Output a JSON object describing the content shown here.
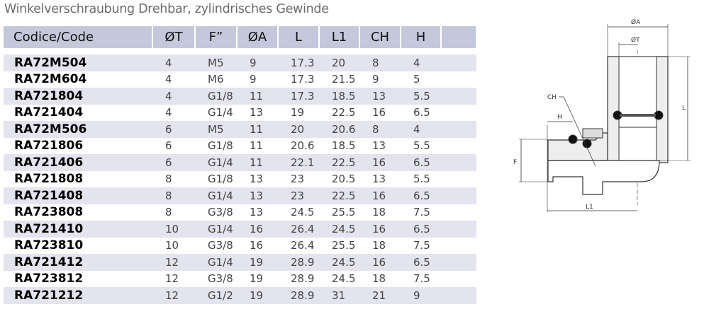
{
  "subtitle": "Winkelverschraubung Drehbar, zylindrisches Gewinde",
  "table": {
    "headers": [
      "Codice/Code",
      "ØT",
      "F”",
      "ØA",
      "L",
      "L1",
      "CH",
      "H"
    ],
    "rows": [
      [
        "RA72M504",
        "4",
        "M5",
        "9",
        "17.3",
        "20",
        "8",
        "4"
      ],
      [
        "RA72M604",
        "4",
        "M6",
        "9",
        "17.3",
        "21.5",
        "9",
        "5"
      ],
      [
        "RA721804",
        "4",
        "G1/8",
        "11",
        "17.3",
        "18.5",
        "13",
        "5.5"
      ],
      [
        "RA721404",
        "4",
        "G1/4",
        "13",
        "19",
        "22.5",
        "16",
        "6.5"
      ],
      [
        "RA72M506",
        "6",
        "M5",
        "11",
        "20",
        "20.6",
        "8",
        "4"
      ],
      [
        "RA721806",
        "6",
        "G1/8",
        "11",
        "20.6",
        "18.5",
        "13",
        "5.5"
      ],
      [
        "RA721406",
        "6",
        "G1/4",
        "11",
        "22.1",
        "22.5",
        "16",
        "6.5"
      ],
      [
        "RA721808",
        "8",
        "G1/8",
        "13",
        "23",
        "20.5",
        "13",
        "5.5"
      ],
      [
        "RA721408",
        "8",
        "G1/4",
        "13",
        "23",
        "22.5",
        "16",
        "6.5"
      ],
      [
        "RA723808",
        "8",
        "G3/8",
        "13",
        "24.5",
        "25.5",
        "18",
        "7.5"
      ],
      [
        "RA721410",
        "10",
        "G1/4",
        "16",
        "26.4",
        "24.5",
        "16",
        "6.5"
      ],
      [
        "RA723810",
        "10",
        "G3/8",
        "16",
        "26.4",
        "25.5",
        "18",
        "7.5"
      ],
      [
        "RA721412",
        "12",
        "G1/4",
        "19",
        "28.9",
        "24.5",
        "16",
        "6.5"
      ],
      [
        "RA723812",
        "12",
        "G3/8",
        "19",
        "28.9",
        "24.5",
        "18",
        "7.5"
      ],
      [
        "RA721212",
        "12",
        "G1/2",
        "19",
        "28.9",
        "31",
        "21",
        "9"
      ]
    ]
  },
  "drawing": {
    "labels": {
      "a": "ØA",
      "t": "ØT",
      "ch": "CH",
      "h": "H",
      "f": "F",
      "l": "L",
      "l1": "L1"
    }
  },
  "colors": {
    "header_bg": "#c4c8da",
    "row_shade": "#e3e4ee"
  }
}
